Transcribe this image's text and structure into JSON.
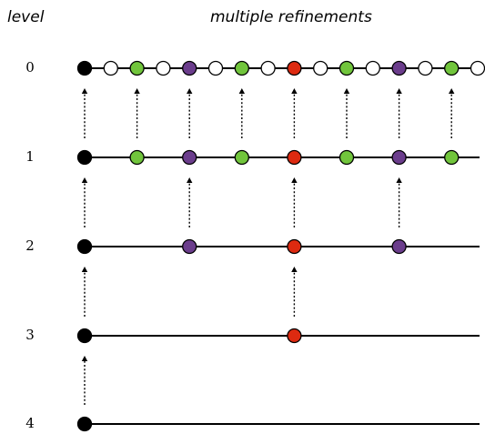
{
  "header": {
    "level_label": "level",
    "refinements_label": "multiple refinements"
  },
  "levels": [
    {
      "label": "0",
      "nodes": [
        "black",
        "white",
        "green",
        "white",
        "purple",
        "white",
        "green",
        "white",
        "red",
        "white",
        "green",
        "white",
        "purple",
        "white",
        "green",
        "white"
      ]
    },
    {
      "label": "1",
      "nodes": [
        "black",
        "green",
        "purple",
        "green",
        "red",
        "green",
        "purple",
        "green"
      ]
    },
    {
      "label": "2",
      "nodes": [
        "black",
        "purple",
        "red",
        "purple"
      ]
    },
    {
      "label": "3",
      "nodes": [
        "black",
        "red"
      ]
    },
    {
      "label": "4",
      "nodes": [
        "black"
      ]
    }
  ],
  "colors": {
    "black": "#000000",
    "white": "#ffffff",
    "green": "#71c53c",
    "purple": "#6b3d8c",
    "red": "#dd2a10",
    "line": "#000000"
  }
}
